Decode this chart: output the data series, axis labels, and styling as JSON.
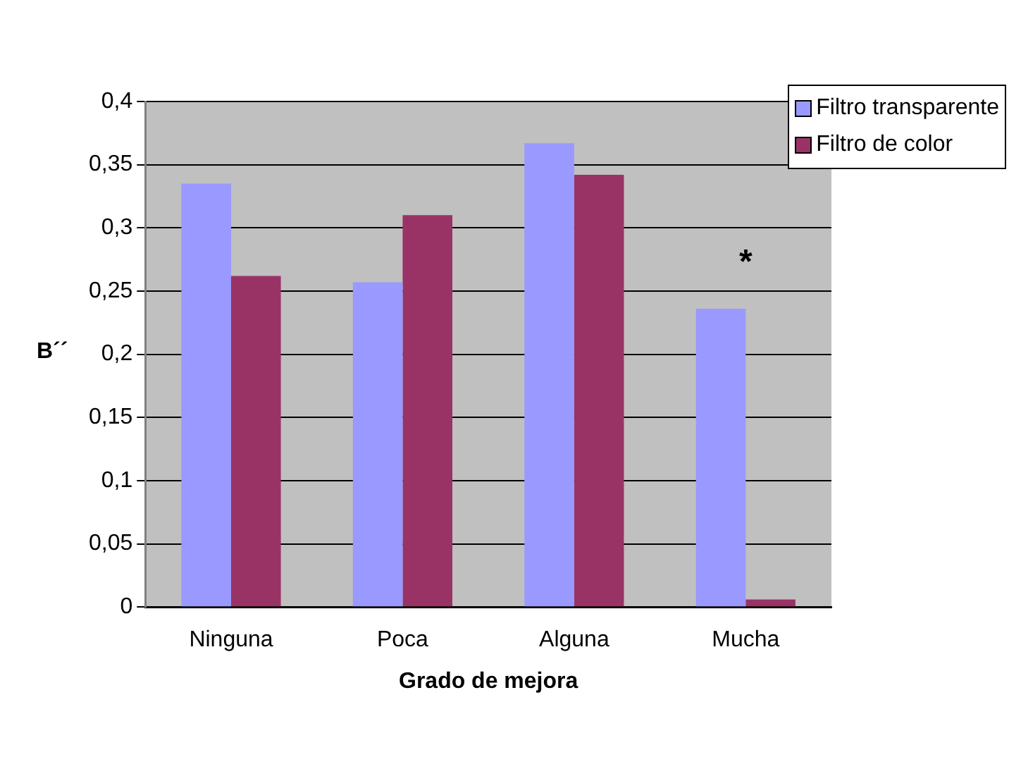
{
  "chart_data": {
    "type": "bar",
    "xlabel": "Grado de mejora",
    "ylabel": "B´´",
    "categories": [
      "Ninguna",
      "Poca",
      "Alguna",
      "Mucha"
    ],
    "series": [
      {
        "name": "Filtro transparente",
        "color": "#9999ff",
        "values": [
          0.335,
          0.257,
          0.367,
          0.236
        ]
      },
      {
        "name": "Filtro de color",
        "color": "#993366",
        "values": [
          0.262,
          0.31,
          0.342,
          0.006
        ]
      }
    ],
    "ylim": [
      0,
      0.4
    ],
    "yticks": [
      {
        "value": 0,
        "label": "0"
      },
      {
        "value": 0.05,
        "label": "0,05"
      },
      {
        "value": 0.1,
        "label": "0,1"
      },
      {
        "value": 0.15,
        "label": "0,15"
      },
      {
        "value": 0.2,
        "label": "0,2"
      },
      {
        "value": 0.25,
        "label": "0,25"
      },
      {
        "value": 0.3,
        "label": "0,3"
      },
      {
        "value": 0.35,
        "label": "0,35"
      },
      {
        "value": 0.4,
        "label": "0,4"
      }
    ],
    "grid": "y",
    "legend": "top right",
    "annotations": [
      "*"
    ]
  }
}
